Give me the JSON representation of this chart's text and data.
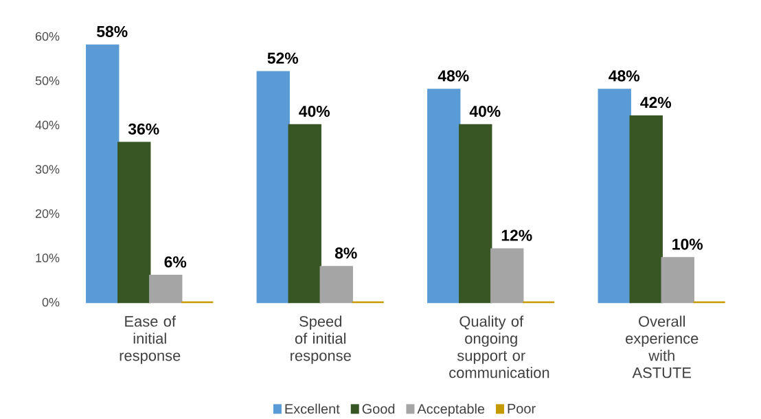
{
  "chart_data": {
    "type": "bar",
    "categories": [
      "Ease of initial response",
      "Speed of initial response",
      "Quality of ongoing support or communication",
      "Overall experience with ASTUTE"
    ],
    "series": [
      {
        "name": "Excellent",
        "color": "#5b9bd5",
        "values": [
          58,
          52,
          48,
          48
        ],
        "value_labels": [
          "58%",
          "52%",
          "48%",
          "48%"
        ]
      },
      {
        "name": "Good",
        "color": "#375623",
        "values": [
          36,
          40,
          40,
          42
        ],
        "value_labels": [
          "36%",
          "40%",
          "40%",
          "42%"
        ]
      },
      {
        "name": "Acceptable",
        "color": "#a5a5a5",
        "values": [
          6,
          8,
          12,
          10
        ],
        "value_labels": [
          "6%",
          "8%",
          "12%",
          "10%"
        ]
      },
      {
        "name": "Poor",
        "color": "#c59a00",
        "values": [
          0,
          0,
          0,
          0
        ],
        "value_labels": [
          null,
          null,
          null,
          null
        ]
      }
    ],
    "ylim": [
      0,
      60
    ],
    "yticks": [
      {
        "value": 0,
        "label": "0%"
      },
      {
        "value": 10,
        "label": "10%"
      },
      {
        "value": 20,
        "label": "20%"
      },
      {
        "value": 30,
        "label": "30%"
      },
      {
        "value": 40,
        "label": "40%"
      },
      {
        "value": 50,
        "label": "50%"
      },
      {
        "value": 60,
        "label": "60%"
      }
    ],
    "legend": "bottom"
  }
}
